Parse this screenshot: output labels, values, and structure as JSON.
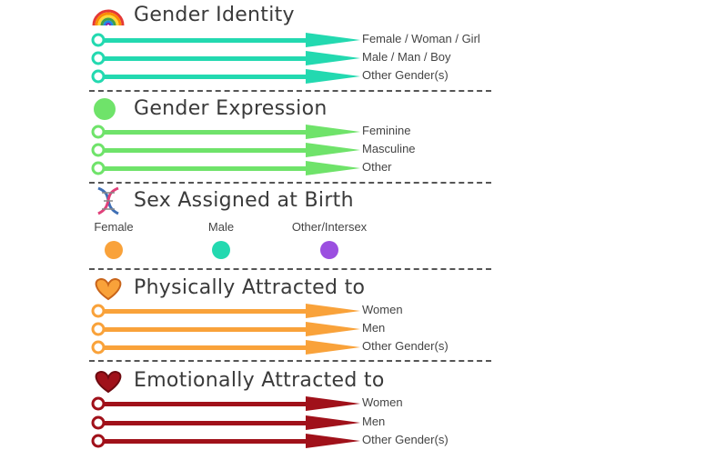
{
  "sections": {
    "gender_identity": {
      "title": "Gender Identity",
      "icon": "rainbow-icon",
      "color": "#23d9b0",
      "options": [
        "Female / Woman / Girl",
        "Male / Man / Boy",
        "Other Gender(s)"
      ]
    },
    "gender_expression": {
      "title": "Gender Expression",
      "icon": "green-circle-icon",
      "color": "#6fe36a",
      "options": [
        "Feminine",
        "Masculine",
        "Other"
      ]
    },
    "sex_assigned": {
      "title": "Sex Assigned at Birth",
      "icon": "dna-icon",
      "items": [
        {
          "label": "Female",
          "color": "#f9a23a"
        },
        {
          "label": "Male",
          "color": "#23d9b0"
        },
        {
          "label": "Other/Intersex",
          "color": "#9b4fe0"
        }
      ]
    },
    "physically_attracted": {
      "title": "Physically Attracted to",
      "icon": "orange-heart-icon",
      "color": "#f9a23a",
      "options": [
        "Women",
        "Men",
        "Other Gender(s)"
      ]
    },
    "emotionally_attracted": {
      "title": "Emotionally Attracted to",
      "icon": "red-heart-icon",
      "color": "#a0111a",
      "options": [
        "Women",
        "Men",
        "Other Gender(s)"
      ]
    }
  }
}
